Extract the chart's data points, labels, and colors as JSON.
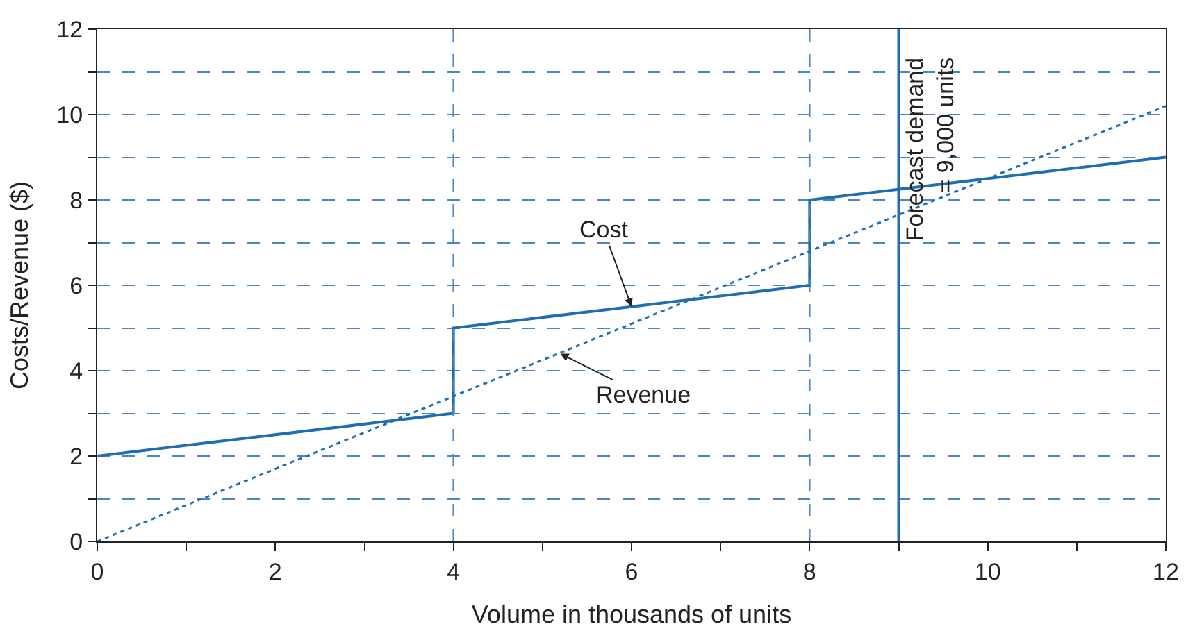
{
  "chart_data": {
    "type": "line",
    "xlabel": "Volume in thousands of units",
    "ylabel": "Costs/Revenue ($)",
    "series": [
      {
        "x": [
          0,
          4,
          4,
          8,
          8,
          12
        ],
        "values": [
          2,
          3,
          5,
          6,
          8,
          9
        ],
        "color": "#1f6db3",
        "line_style": "solid"
      },
      {
        "x": [
          0,
          12
        ],
        "values": [
          0,
          10.2
        ],
        "color": "#1f6db3",
        "line_style": "dotted"
      }
    ],
    "xlim": [
      0,
      12
    ],
    "ylim": [
      0,
      12
    ],
    "xticks": [
      0,
      {
        "value": 1,
        "label": null
      },
      2,
      {
        "value": 3,
        "label": null
      },
      4,
      {
        "value": 5,
        "label": null
      },
      6,
      {
        "value": 7,
        "label": null
      },
      8,
      {
        "value": 9,
        "label": null
      },
      10,
      {
        "value": 11,
        "label": null
      },
      12
    ],
    "yticks": [
      0,
      {
        "value": 1,
        "label": null
      },
      2,
      {
        "value": 3,
        "label": null
      },
      4,
      {
        "value": 5,
        "label": null
      },
      6,
      {
        "value": 7,
        "label": null
      },
      8,
      {
        "value": 9,
        "label": null
      },
      10,
      {
        "value": 11,
        "label": null
      },
      12
    ],
    "grid": "y",
    "marker": "none",
    "ref_lines": [
      {
        "axis": "x",
        "value": 4,
        "label": null,
        "color": "#4a86c5",
        "line_style": "dashed"
      },
      {
        "axis": "x",
        "value": 8,
        "label": null,
        "color": "#4a86c5",
        "line_style": "dashed"
      },
      {
        "axis": "x",
        "value": 9,
        "label": "Forecast demand\n= 9,000 units",
        "color": "#1f6db3",
        "line_style": "solid"
      }
    ],
    "annotations": [
      {
        "text": "Cost",
        "x": 6,
        "y": 5.5
      },
      {
        "text": "Revenue",
        "x": 5.2,
        "y": 4.4
      }
    ]
  }
}
